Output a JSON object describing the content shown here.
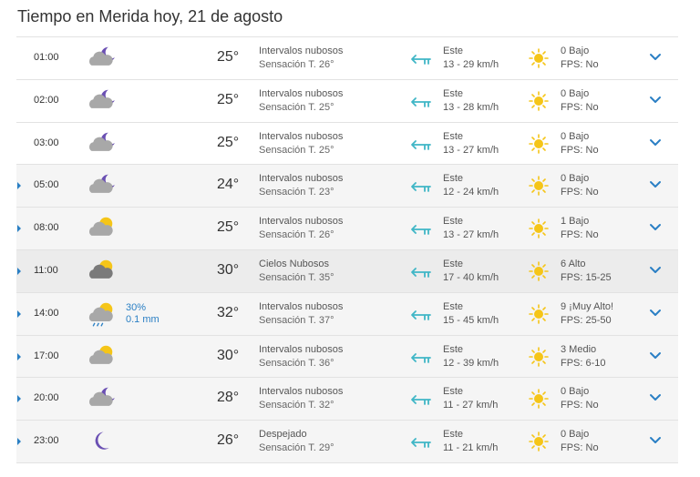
{
  "page": {
    "title": "Tiempo en Merida hoy, 21 de agosto"
  },
  "colors": {
    "accent": "#2a7fc4",
    "wind_arrow": "#3fb6c6",
    "sun": "#f5c518",
    "cloud": "#a8a8a8",
    "moon": "#6a4fb3"
  },
  "rows": [
    {
      "hour": "01:00",
      "icon": "cloud-moon-icon",
      "precip_prob": "",
      "precip_amount": "",
      "temp": "25°",
      "desc": "Intervalos nubosos",
      "feels": "Sensación T. 26°",
      "wind_dir": "Este",
      "wind_speed": "13 - 29 km/h",
      "uv": "0 Bajo",
      "fps": "FPS: No",
      "expandable": false,
      "shade": "white"
    },
    {
      "hour": "02:00",
      "icon": "cloud-moon-icon",
      "precip_prob": "",
      "precip_amount": "",
      "temp": "25°",
      "desc": "Intervalos nubosos",
      "feels": "Sensación T. 25°",
      "wind_dir": "Este",
      "wind_speed": "13 - 28 km/h",
      "uv": "0 Bajo",
      "fps": "FPS: No",
      "expandable": false,
      "shade": "white"
    },
    {
      "hour": "03:00",
      "icon": "cloud-moon-icon",
      "precip_prob": "",
      "precip_amount": "",
      "temp": "25°",
      "desc": "Intervalos nubosos",
      "feels": "Sensación T. 25°",
      "wind_dir": "Este",
      "wind_speed": "13 - 27 km/h",
      "uv": "0 Bajo",
      "fps": "FPS: No",
      "expandable": false,
      "shade": "white"
    },
    {
      "hour": "05:00",
      "icon": "cloud-moon-icon",
      "precip_prob": "",
      "precip_amount": "",
      "temp": "24°",
      "desc": "Intervalos nubosos",
      "feels": "Sensación T. 23°",
      "wind_dir": "Este",
      "wind_speed": "12 - 24 km/h",
      "uv": "0 Bajo",
      "fps": "FPS: No",
      "expandable": true,
      "shade": "gray"
    },
    {
      "hour": "08:00",
      "icon": "cloud-sun-icon",
      "precip_prob": "",
      "precip_amount": "",
      "temp": "25°",
      "desc": "Intervalos nubosos",
      "feels": "Sensación T. 26°",
      "wind_dir": "Este",
      "wind_speed": "13 - 27 km/h",
      "uv": "1 Bajo",
      "fps": "FPS: No",
      "expandable": true,
      "shade": "gray"
    },
    {
      "hour": "11:00",
      "icon": "dark-cloud-sun-icon",
      "precip_prob": "",
      "precip_amount": "",
      "temp": "30°",
      "desc": "Cielos Nubosos",
      "feels": "Sensación T. 35°",
      "wind_dir": "Este",
      "wind_speed": "17 - 40 km/h",
      "uv": "6 Alto",
      "fps": "FPS: 15-25",
      "expandable": true,
      "shade": "dark"
    },
    {
      "hour": "14:00",
      "icon": "cloud-sun-rain-icon",
      "precip_prob": "30%",
      "precip_amount": "0.1 mm",
      "temp": "32°",
      "desc": "Intervalos nubosos",
      "feels": "Sensación T. 37°",
      "wind_dir": "Este",
      "wind_speed": "15 - 45 km/h",
      "uv": "9 ¡Muy Alto!",
      "fps": "FPS: 25-50",
      "expandable": true,
      "shade": "gray"
    },
    {
      "hour": "17:00",
      "icon": "cloud-sun-icon",
      "precip_prob": "",
      "precip_amount": "",
      "temp": "30°",
      "desc": "Intervalos nubosos",
      "feels": "Sensación T. 36°",
      "wind_dir": "Este",
      "wind_speed": "12 - 39 km/h",
      "uv": "3 Medio",
      "fps": "FPS: 6-10",
      "expandable": true,
      "shade": "gray"
    },
    {
      "hour": "20:00",
      "icon": "cloud-moon-icon",
      "precip_prob": "",
      "precip_amount": "",
      "temp": "28°",
      "desc": "Intervalos nubosos",
      "feels": "Sensación T. 32°",
      "wind_dir": "Este",
      "wind_speed": "11 - 27 km/h",
      "uv": "0 Bajo",
      "fps": "FPS: No",
      "expandable": true,
      "shade": "gray"
    },
    {
      "hour": "23:00",
      "icon": "moon-icon",
      "precip_prob": "",
      "precip_amount": "",
      "temp": "26°",
      "desc": "Despejado",
      "feels": "Sensación T. 29°",
      "wind_dir": "Este",
      "wind_speed": "11 - 21 km/h",
      "uv": "0 Bajo",
      "fps": "FPS: No",
      "expandable": true,
      "shade": "gray"
    }
  ]
}
